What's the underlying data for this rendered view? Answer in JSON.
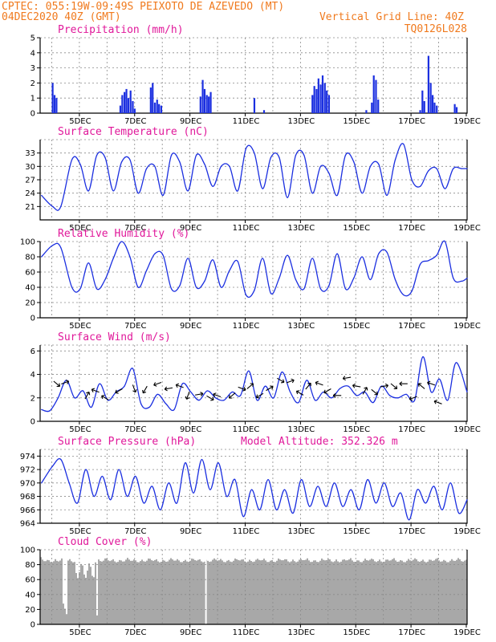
{
  "header": {
    "line1": "CPTEC:   055:19W-09:49S   PEIXOTO DE AZEVEDO (MT)",
    "line2": "04DEC2020 40Z (GMT)",
    "right1": "Vertical Grid Line: 40Z",
    "right2": "TQ0126L028"
  },
  "colors": {
    "header": "#f07a1e",
    "title": "#e0189a",
    "series": "#1b2fe0",
    "cloud": "#a8a8a8"
  },
  "x_ticks": [
    "5DEC",
    "7DEC",
    "9DEC",
    "11DEC",
    "13DEC",
    "15DEC",
    "17DEC",
    "19DEC"
  ],
  "chart_data": [
    {
      "type": "bar",
      "title": "Precipitation (mm/h)",
      "ylim": [
        0,
        5
      ],
      "yticks": [
        0,
        1,
        2,
        3,
        4,
        5
      ],
      "x": [
        4.0,
        4.07,
        4.14,
        6.45,
        6.52,
        6.6,
        6.67,
        6.74,
        6.82,
        6.9,
        6.97,
        7.55,
        7.62,
        7.7,
        7.78,
        7.85,
        7.93,
        9.35,
        9.43,
        9.5,
        9.58,
        9.65,
        9.72,
        11.3,
        11.65,
        13.4,
        13.47,
        13.55,
        13.62,
        13.7,
        13.77,
        13.85,
        13.92,
        14.0,
        15.35,
        15.55,
        15.62,
        15.7,
        15.78,
        17.3,
        17.38,
        17.45,
        17.6,
        17.68,
        17.75,
        17.82,
        17.9,
        18.55,
        18.62
      ],
      "values": [
        2.0,
        1.2,
        1.0,
        0.5,
        1.2,
        1.4,
        1.6,
        1.0,
        1.5,
        0.8,
        0.3,
        1.7,
        2.0,
        0.7,
        0.9,
        0.6,
        0.5,
        1.1,
        2.2,
        1.6,
        1.2,
        1.1,
        1.4,
        1.0,
        0.2,
        1.2,
        1.8,
        1.6,
        2.3,
        1.9,
        2.5,
        2.0,
        1.5,
        1.2,
        0.2,
        0.7,
        2.5,
        2.2,
        0.9,
        0.2,
        1.5,
        0.8,
        3.8,
        2.0,
        1.2,
        0.7,
        0.5,
        0.6,
        0.4
      ]
    },
    {
      "type": "line",
      "title": "Surface Temperature (nC)",
      "ylim": [
        18,
        36
      ],
      "yticks": [
        21,
        24,
        27,
        30,
        33
      ],
      "x": [
        3.6,
        4.0,
        4.3,
        4.7,
        5.0,
        5.3,
        5.6,
        5.9,
        6.2,
        6.5,
        6.8,
        7.1,
        7.4,
        7.7,
        8.0,
        8.3,
        8.6,
        8.9,
        9.2,
        9.5,
        9.8,
        10.1,
        10.4,
        10.7,
        11.0,
        11.3,
        11.6,
        11.9,
        12.2,
        12.5,
        12.8,
        13.1,
        13.4,
        13.7,
        14.0,
        14.3,
        14.6,
        14.9,
        15.2,
        15.5,
        15.8,
        16.1,
        16.4,
        16.7,
        17.0,
        17.3,
        17.6,
        17.9,
        18.2,
        18.5,
        18.8,
        19.0
      ],
      "values": [
        23.5,
        21.0,
        21.0,
        31.5,
        30.5,
        24.5,
        32.5,
        32.0,
        24.5,
        31.0,
        31.5,
        24.0,
        29.5,
        30.0,
        23.5,
        32.5,
        31.0,
        24.5,
        32.5,
        30.5,
        25.5,
        30.0,
        30.0,
        24.5,
        34.0,
        33.0,
        25.0,
        32.0,
        32.0,
        23.0,
        32.5,
        32.5,
        24.0,
        30.0,
        28.5,
        23.5,
        32.5,
        31.0,
        24.0,
        30.0,
        30.5,
        23.5,
        31.5,
        35.0,
        27.0,
        25.5,
        29.0,
        29.5,
        25.0,
        29.5,
        29.5,
        29.5
      ]
    },
    {
      "type": "line",
      "title": "Relative Humidity (%)",
      "ylim": [
        0,
        100
      ],
      "yticks": [
        0,
        20,
        40,
        60,
        80,
        100
      ],
      "x": [
        3.6,
        4.0,
        4.3,
        4.7,
        5.0,
        5.3,
        5.6,
        5.9,
        6.2,
        6.5,
        6.8,
        7.1,
        7.4,
        7.7,
        8.0,
        8.3,
        8.6,
        8.9,
        9.2,
        9.5,
        9.8,
        10.1,
        10.4,
        10.7,
        11.0,
        11.3,
        11.6,
        11.9,
        12.2,
        12.5,
        12.8,
        13.1,
        13.4,
        13.7,
        14.0,
        14.3,
        14.6,
        14.9,
        15.2,
        15.5,
        15.8,
        16.1,
        16.4,
        16.7,
        17.0,
        17.3,
        17.6,
        17.9,
        18.2,
        18.5,
        18.8,
        19.0
      ],
      "values": [
        80,
        95,
        92,
        40,
        38,
        72,
        38,
        50,
        78,
        100,
        80,
        40,
        62,
        84,
        82,
        38,
        42,
        78,
        40,
        48,
        76,
        40,
        62,
        74,
        30,
        36,
        78,
        32,
        52,
        82,
        50,
        38,
        78,
        38,
        42,
        84,
        38,
        52,
        80,
        50,
        84,
        86,
        50,
        30,
        35,
        70,
        75,
        82,
        100,
        52,
        48,
        52
      ]
    },
    {
      "type": "line",
      "title": "Surface Wind (m/s)",
      "ylim": [
        0,
        6.5
      ],
      "yticks": [
        0,
        2,
        4,
        6
      ],
      "x": [
        3.6,
        3.9,
        4.2,
        4.5,
        4.8,
        5.1,
        5.4,
        5.7,
        6.0,
        6.3,
        6.6,
        6.9,
        7.2,
        7.5,
        7.8,
        8.1,
        8.4,
        8.7,
        9.0,
        9.3,
        9.6,
        9.9,
        10.2,
        10.5,
        10.8,
        11.1,
        11.4,
        11.7,
        12.0,
        12.3,
        12.6,
        12.9,
        13.2,
        13.5,
        13.8,
        14.1,
        14.4,
        14.7,
        15.0,
        15.3,
        15.6,
        15.9,
        16.2,
        16.5,
        16.8,
        17.1,
        17.4,
        17.7,
        18.0,
        18.3,
        18.6,
        19.0
      ],
      "values": [
        1.0,
        0.9,
        2.0,
        3.5,
        2.0,
        2.6,
        1.2,
        3.2,
        1.8,
        2.5,
        3.0,
        4.5,
        1.5,
        1.2,
        2.3,
        1.5,
        1.0,
        3.2,
        2.5,
        1.8,
        2.6,
        2.0,
        1.8,
        2.5,
        2.2,
        4.3,
        1.8,
        3.0,
        2.0,
        4.2,
        2.5,
        1.6,
        3.5,
        1.8,
        2.5,
        2.0,
        2.8,
        3.0,
        2.2,
        2.5,
        1.6,
        3.0,
        2.2,
        2.0,
        2.3,
        1.8,
        5.5,
        2.5,
        3.6,
        1.8,
        5.0,
        2.5
      ]
    },
    {
      "type": "line",
      "title": "Surface Pressure (hPa)",
      "subtitle": "Model Altitude: 352.326 m",
      "ylim": [
        964,
        975
      ],
      "yticks": [
        964,
        966,
        968,
        970,
        972,
        974
      ],
      "x": [
        3.6,
        4.0,
        4.3,
        4.6,
        4.9,
        5.2,
        5.5,
        5.8,
        6.1,
        6.4,
        6.7,
        7.0,
        7.3,
        7.6,
        7.9,
        8.2,
        8.5,
        8.8,
        9.1,
        9.4,
        9.7,
        10.0,
        10.3,
        10.6,
        10.9,
        11.2,
        11.5,
        11.8,
        12.1,
        12.4,
        12.7,
        13.0,
        13.3,
        13.6,
        13.9,
        14.2,
        14.5,
        14.8,
        15.1,
        15.4,
        15.7,
        16.0,
        16.3,
        16.6,
        16.9,
        17.2,
        17.5,
        17.8,
        18.1,
        18.4,
        18.7,
        19.0
      ],
      "values": [
        970.0,
        972.5,
        973.5,
        970.0,
        967.0,
        972.0,
        968.0,
        971.0,
        967.5,
        972.0,
        968.0,
        971.0,
        967.0,
        969.5,
        966.0,
        970.0,
        967.0,
        973.0,
        968.5,
        973.5,
        969.0,
        973.0,
        968.0,
        970.5,
        965.0,
        969.0,
        966.0,
        970.5,
        966.0,
        969.0,
        965.5,
        970.5,
        966.5,
        969.5,
        966.5,
        970.0,
        966.5,
        969.0,
        966.0,
        970.5,
        967.0,
        970.0,
        966.5,
        968.5,
        964.5,
        969.0,
        967.0,
        969.5,
        966.0,
        970.0,
        965.5,
        967.5
      ]
    }
  ],
  "cloud": {
    "title": "Cloud Cover (%)",
    "ylim": [
      0,
      100
    ],
    "yticks": [
      0,
      20,
      40,
      60,
      80,
      100
    ]
  }
}
